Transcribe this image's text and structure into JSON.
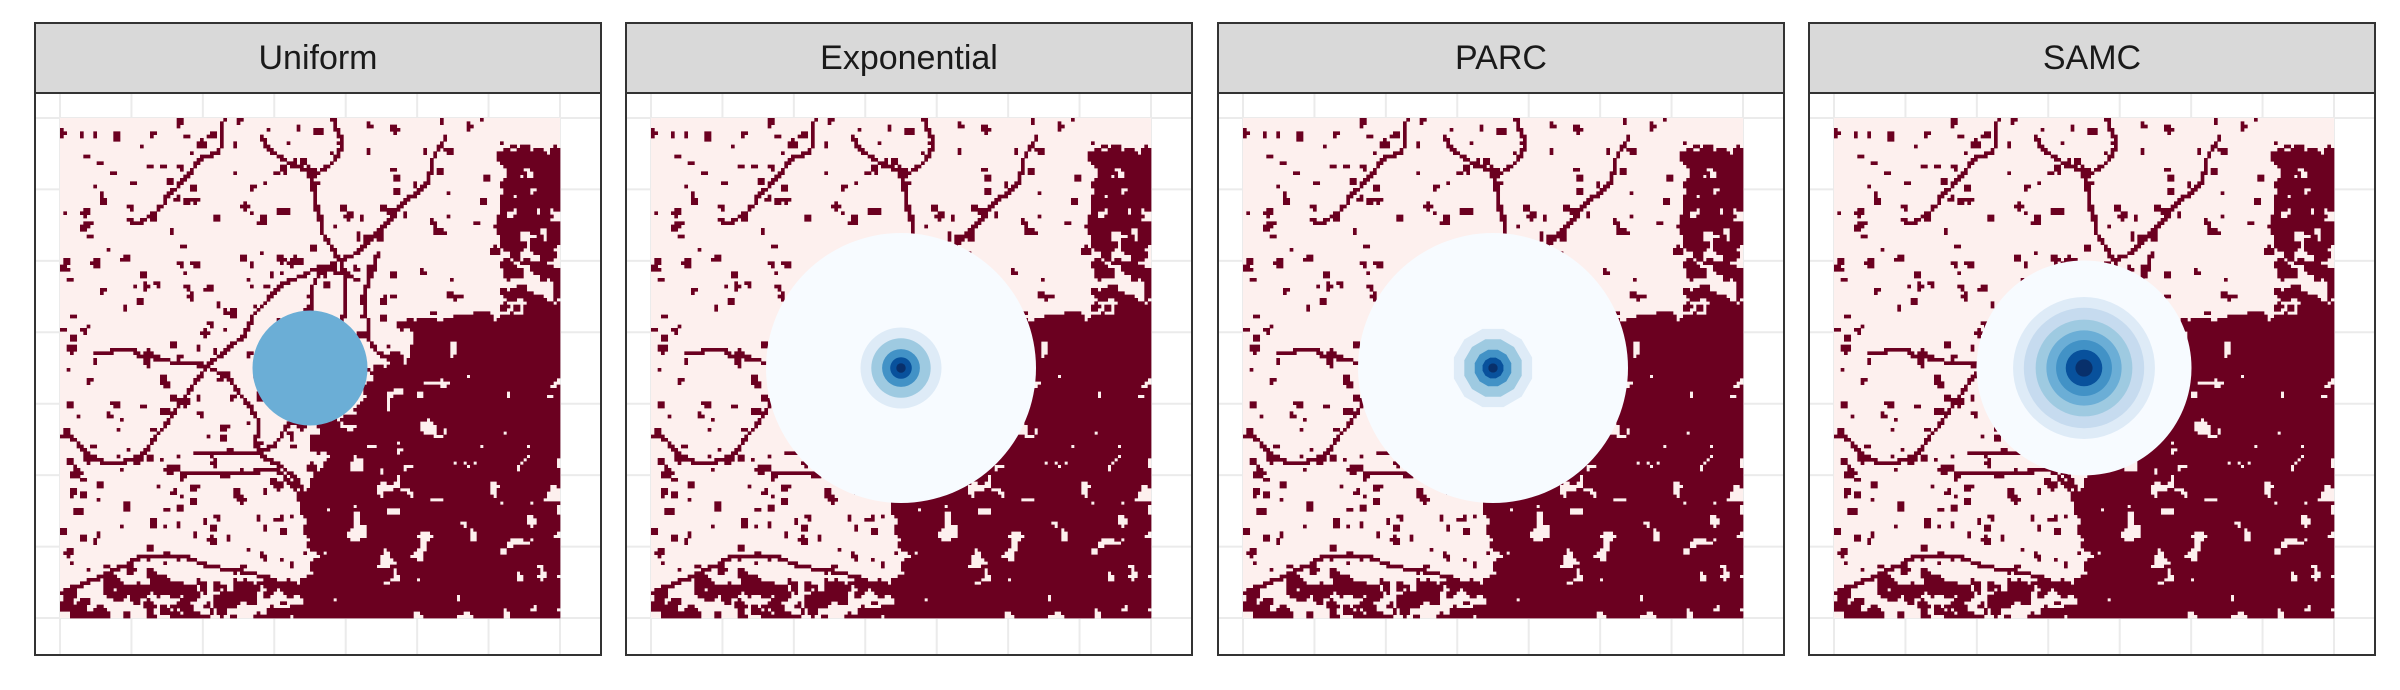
{
  "chart_data": {
    "type": "heatmap",
    "layout": "facet_wrap",
    "facets": [
      {
        "label": "Uniform",
        "kernel": "uniform",
        "radius": 0.115,
        "blue_levels": 1
      },
      {
        "label": "Exponential",
        "kernel": "exponential",
        "radius": 0.27,
        "blue_levels": 6
      },
      {
        "label": "PARC",
        "kernel": "parc",
        "radius": 0.27,
        "blue_levels": 6
      },
      {
        "label": "SAMC",
        "kernel": "samc",
        "radius": 0.215,
        "blue_levels": 8
      }
    ],
    "kernel_center": [
      0.5,
      0.5
    ],
    "grid": true,
    "axes_visible": false,
    "legend": "none"
  },
  "colors": {
    "landscape_low": "#fdf0ee",
    "landscape_high": "#6b0020",
    "uniform_fill": "#6baed6",
    "blue_ramp": [
      "#f7fbff",
      "#deebf7",
      "#c6dbef",
      "#9ecae1",
      "#6baed6",
      "#4292c6",
      "#2171b5",
      "#08519c",
      "#08306b"
    ],
    "strip_fill": "#d9d9d9",
    "panel_border": "#333333",
    "gridline": "#ebebeb"
  }
}
